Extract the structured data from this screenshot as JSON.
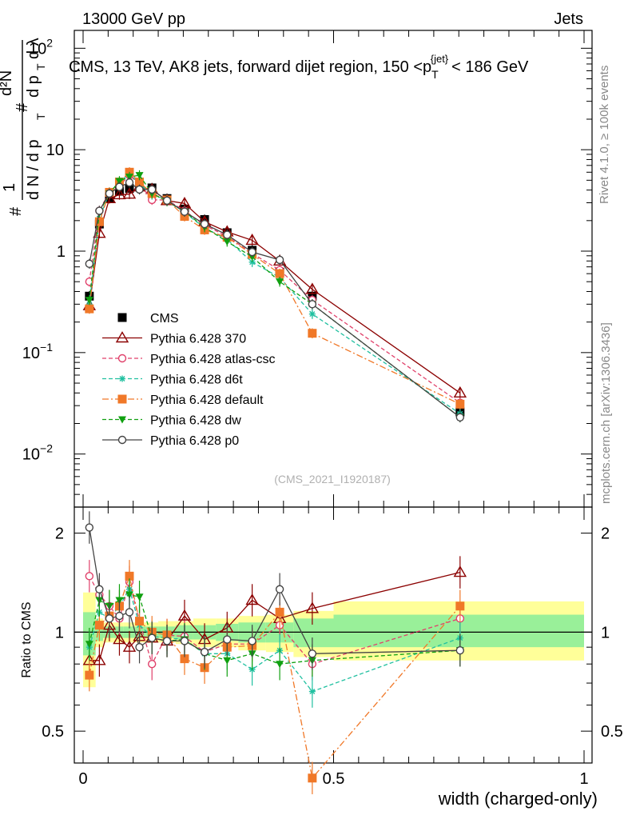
{
  "header": {
    "left": "13000 GeV pp",
    "right": "Jets",
    "rivet": "Rivet 4.1.0, ≥ 100k events",
    "mcplots": "mcplots.cern.ch [arXiv:1306.3436]",
    "analysis": "(CMS_2021_I1920187)"
  },
  "chart_data": {
    "type": "line",
    "title": "CMS, 13 TeV, AK8 jets, forward dijet region, 150 < pT(jet) < 186 GeV",
    "title_parts": {
      "main": "CMS, 13 TeV, AK8 jets, forward dijet region, 150 <p",
      "sub": "T",
      "sup": "{jet}",
      "end": "< 186 GeV"
    },
    "ylabel": "1/dN/dpT · d²N/dpT dλ",
    "ylabel_parts": {
      "hash": "#",
      "one": "1",
      "dN": "d N / d p",
      "T": "T",
      "d2N": "d²N",
      "dpt": "d p",
      "dl": "d λ"
    },
    "xlabel": "width (charged-only)",
    "ratio_ylabel": "Ratio to CMS",
    "xlim": [
      0,
      1
    ],
    "ylim_main": [
      0.003,
      150
    ],
    "ylim_ratio": [
      0.4,
      2.4
    ],
    "yscale": "log",
    "x_ticks": [
      "0",
      "0.5",
      "1"
    ],
    "y_ticks_main": [
      "10^-2",
      "10^-1",
      "1",
      "10",
      "10^2"
    ],
    "y_ticks_ratio": [
      "0.5",
      "1",
      "2"
    ],
    "x": [
      0.0125,
      0.0325,
      0.0525,
      0.0725,
      0.0925,
      0.1125,
      0.1375,
      0.1675,
      0.2025,
      0.2425,
      0.2875,
      0.3375,
      0.3925,
      0.4575,
      0.7525
    ],
    "bands": [
      {
        "x0": 0.0,
        "x1": 0.025,
        "green": [
          0.85,
          1.15
        ],
        "yellow": [
          0.68,
          1.32
        ]
      },
      {
        "x0": 0.025,
        "x1": 0.04,
        "green": [
          0.94,
          1.06
        ],
        "yellow": [
          0.9,
          1.1
        ]
      },
      {
        "x0": 0.04,
        "x1": 0.06,
        "green": [
          0.96,
          1.04
        ],
        "yellow": [
          0.93,
          1.07
        ]
      },
      {
        "x0": 0.06,
        "x1": 0.08,
        "green": [
          0.96,
          1.04
        ],
        "yellow": [
          0.93,
          1.07
        ]
      },
      {
        "x0": 0.08,
        "x1": 0.105,
        "green": [
          0.96,
          1.04
        ],
        "yellow": [
          0.93,
          1.07
        ]
      },
      {
        "x0": 0.105,
        "x1": 0.125,
        "green": [
          0.96,
          1.04
        ],
        "yellow": [
          0.93,
          1.07
        ]
      },
      {
        "x0": 0.125,
        "x1": 0.15,
        "green": [
          0.96,
          1.04
        ],
        "yellow": [
          0.93,
          1.07
        ]
      },
      {
        "x0": 0.15,
        "x1": 0.185,
        "green": [
          0.96,
          1.04
        ],
        "yellow": [
          0.93,
          1.08
        ]
      },
      {
        "x0": 0.185,
        "x1": 0.22,
        "green": [
          0.95,
          1.05
        ],
        "yellow": [
          0.92,
          1.08
        ]
      },
      {
        "x0": 0.22,
        "x1": 0.265,
        "green": [
          0.95,
          1.05
        ],
        "yellow": [
          0.9,
          1.1
        ]
      },
      {
        "x0": 0.265,
        "x1": 0.31,
        "green": [
          0.94,
          1.06
        ],
        "yellow": [
          0.9,
          1.1
        ]
      },
      {
        "x0": 0.31,
        "x1": 0.365,
        "green": [
          0.93,
          1.07
        ],
        "yellow": [
          0.88,
          1.12
        ]
      },
      {
        "x0": 0.365,
        "x1": 0.42,
        "green": [
          0.93,
          1.07
        ],
        "yellow": [
          0.87,
          1.13
        ]
      },
      {
        "x0": 0.42,
        "x1": 0.5,
        "green": [
          0.9,
          1.1
        ],
        "yellow": [
          0.84,
          1.16
        ]
      },
      {
        "x0": 0.5,
        "x1": 1.0,
        "green": [
          0.9,
          1.13
        ],
        "yellow": [
          0.82,
          1.24
        ]
      }
    ],
    "series": [
      {
        "name": "CMS",
        "color": "#000000",
        "marker": "square",
        "dash": "none",
        "values": [
          0.36,
          1.85,
          3.35,
          3.9,
          4.15,
          4.4,
          4.2,
          3.3,
          2.6,
          2.05,
          1.52,
          1.02,
          0.62,
          0.36,
          0.026
        ],
        "ratio": [
          1,
          1,
          1,
          1,
          1,
          1,
          1,
          1,
          1,
          1,
          1,
          1,
          1,
          1,
          1
        ]
      },
      {
        "name": "Pythia 6.428 370",
        "color": "#8b0000",
        "marker": "triangle-open",
        "dash": "none",
        "values": [
          0.29,
          1.5,
          3.3,
          3.6,
          3.65,
          4.3,
          4.05,
          3.15,
          2.95,
          1.95,
          1.55,
          1.28,
          0.8,
          0.42,
          0.04
        ],
        "ratio": [
          0.82,
          0.82,
          1.05,
          0.95,
          0.9,
          0.97,
          0.96,
          0.94,
          1.12,
          0.95,
          1.03,
          1.25,
          1.1,
          1.18,
          1.52
        ]
      },
      {
        "name": "Pythia 6.428 atlas-csc",
        "color": "#e0406a",
        "marker": "circle-open",
        "dash": "5,3",
        "values": [
          0.5,
          2.5,
          3.7,
          4.4,
          5.6,
          4.6,
          3.2,
          3.2,
          2.5,
          1.8,
          1.4,
          0.95,
          0.65,
          0.33,
          0.032
        ],
        "ratio": [
          1.48,
          1.3,
          1.2,
          1.1,
          1.42,
          1.08,
          0.8,
          0.98,
          0.97,
          0.87,
          0.92,
          0.92,
          1.05,
          0.8,
          1.1
        ]
      },
      {
        "name": "Pythia 6.428 d6t",
        "color": "#20c0a0",
        "marker": "star",
        "dash": "5,3",
        "values": [
          0.3,
          2.1,
          3.8,
          4.8,
          5.8,
          4.6,
          3.6,
          3.2,
          2.4,
          1.7,
          1.3,
          0.78,
          0.55,
          0.24,
          0.025
        ],
        "ratio": [
          0.9,
          1.15,
          1.1,
          1.2,
          1.35,
          1.05,
          0.97,
          0.96,
          0.95,
          0.86,
          0.86,
          0.77,
          0.88,
          0.66,
          0.96
        ]
      },
      {
        "name": "Pythia 6.428 default",
        "color": "#f07828",
        "marker": "square",
        "dash": "8,3,2,3",
        "values": [
          0.27,
          1.95,
          3.8,
          4.8,
          6.0,
          4.8,
          3.7,
          3.2,
          2.2,
          1.62,
          1.37,
          0.93,
          0.6,
          0.155,
          0.031
        ],
        "ratio": [
          0.74,
          1.05,
          1.12,
          1.2,
          1.48,
          1.08,
          1.0,
          0.98,
          0.83,
          0.78,
          0.9,
          0.91,
          1.15,
          0.36,
          1.2
        ]
      },
      {
        "name": "Pythia 6.428 dw",
        "color": "#10a010",
        "marker": "triangle-down",
        "dash": "5,3",
        "values": [
          0.33,
          2.4,
          3.7,
          4.9,
          5.4,
          5.6,
          3.7,
          3.1,
          2.45,
          1.72,
          1.24,
          0.88,
          0.5,
          0.3,
          0.023
        ],
        "ratio": [
          0.92,
          1.25,
          1.2,
          1.25,
          1.3,
          1.28,
          0.96,
          0.94,
          0.95,
          0.86,
          0.82,
          0.86,
          0.8,
          0.82,
          0.88
        ]
      },
      {
        "name": "Pythia 6.428 p0",
        "color": "#444444",
        "marker": "circle-open",
        "dash": "none",
        "values": [
          0.75,
          2.5,
          3.7,
          4.3,
          4.75,
          4.05,
          4.05,
          3.15,
          2.45,
          1.85,
          1.45,
          0.98,
          0.82,
          0.3,
          0.023
        ],
        "ratio": [
          2.08,
          1.35,
          1.1,
          1.12,
          1.15,
          0.9,
          0.96,
          0.94,
          0.94,
          0.87,
          0.95,
          0.94,
          1.35,
          0.86,
          0.88
        ]
      }
    ]
  }
}
